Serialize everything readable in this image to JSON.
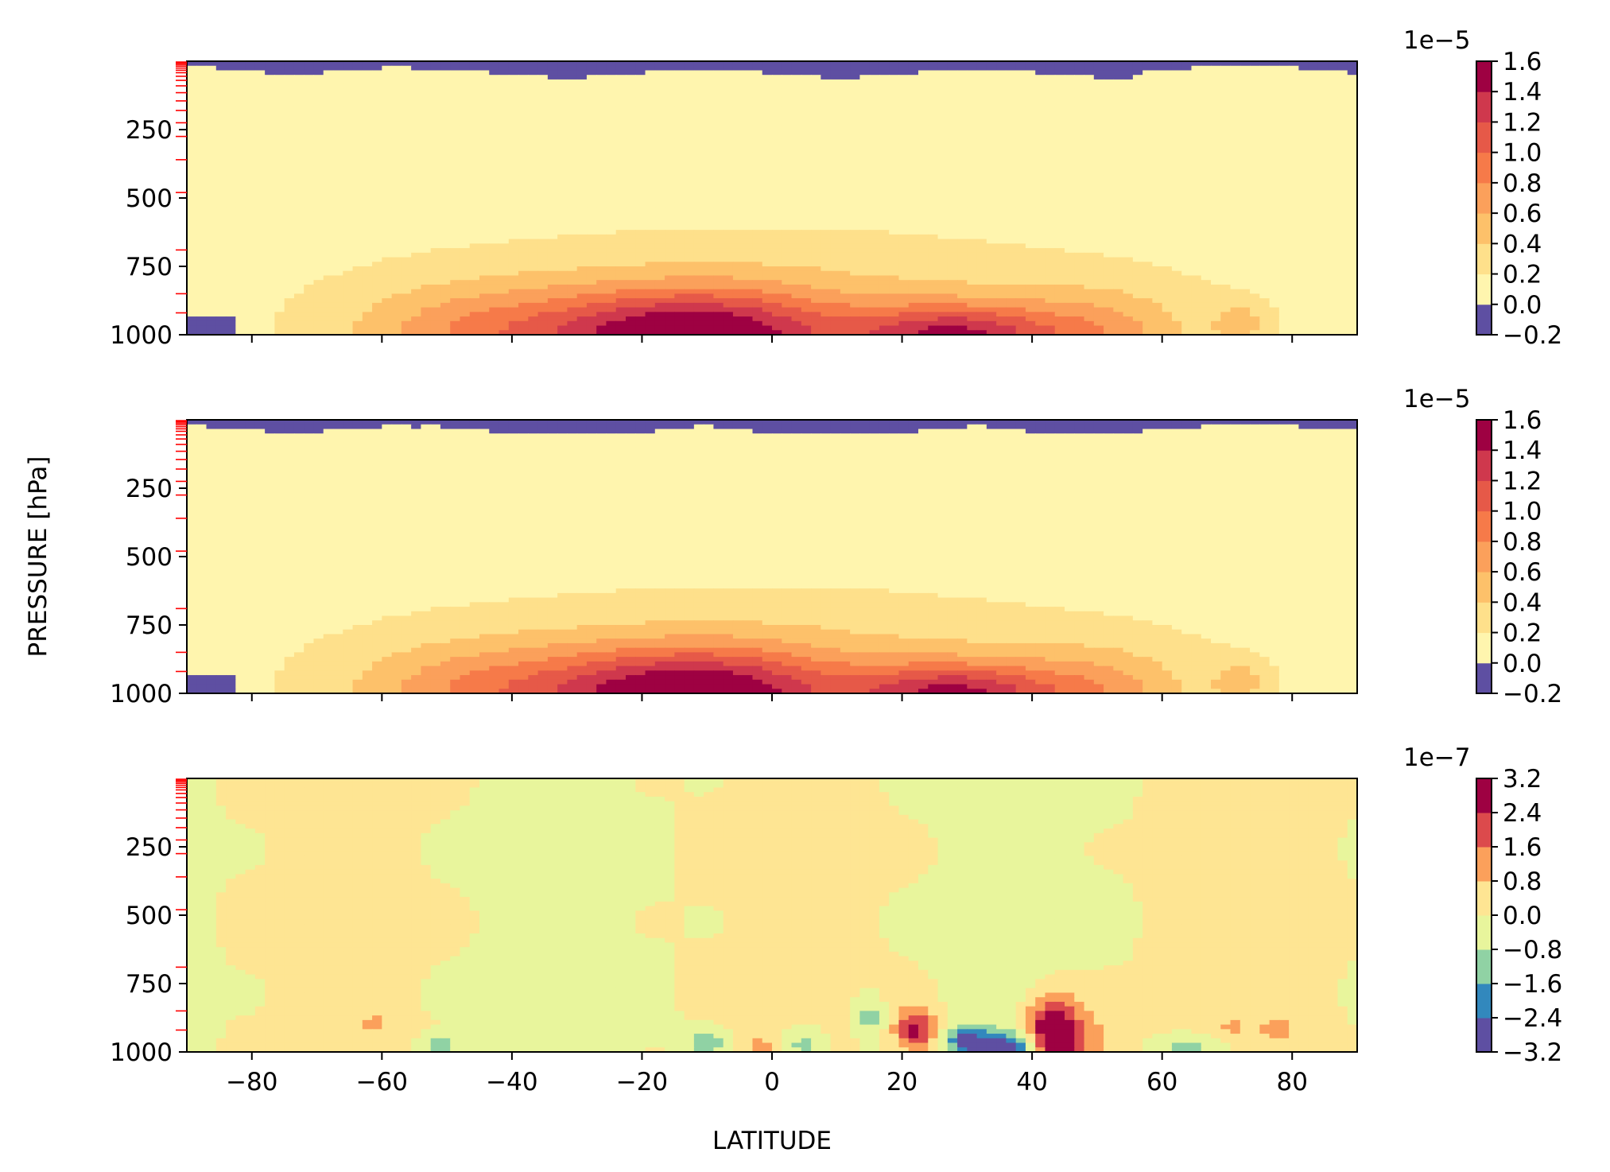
{
  "chart_data": [
    {
      "type": "heatmap",
      "title": "",
      "xlabel": "",
      "ylabel": "PRESSURE [hPa]",
      "xlim": [
        -90,
        90
      ],
      "ylim": [
        1000,
        0
      ],
      "yticks": [
        "250",
        "500",
        "750",
        "1000"
      ],
      "yticks_values": [
        250,
        500,
        750,
        1000
      ],
      "xticks_values": [
        -80,
        -60,
        -40,
        -20,
        0,
        20,
        40,
        60,
        80
      ],
      "xtick_labels_shown": false,
      "colorbar": {
        "scale_label": "1e−5",
        "levels": [
          -0.2,
          0.0,
          0.2,
          0.4,
          0.6,
          0.8,
          1.0,
          1.2,
          1.4,
          1.6
        ],
        "tick_labels": [
          "−0.2",
          "0.0",
          "0.2",
          "0.4",
          "0.6",
          "0.8",
          "1.0",
          "1.2",
          "1.4",
          "1.6"
        ],
        "colors": [
          "#5e4fa2",
          "#fff5ae",
          "#fee08b",
          "#fdc16a",
          "#fba05b",
          "#f67a49",
          "#e65948",
          "#cf384d",
          "#9e0142"
        ]
      },
      "model_levels_hPa": [
        3,
        7,
        12,
        18,
        25,
        33,
        42,
        55,
        70,
        90,
        115,
        145,
        180,
        225,
        275,
        360,
        480,
        690,
        850,
        920
      ]
    },
    {
      "type": "heatmap",
      "title": "",
      "xlabel": "",
      "ylabel": "PRESSURE [hPa]",
      "xlim": [
        -90,
        90
      ],
      "ylim": [
        1000,
        0
      ],
      "yticks": [
        "250",
        "500",
        "750",
        "1000"
      ],
      "yticks_values": [
        250,
        500,
        750,
        1000
      ],
      "xticks_values": [
        -80,
        -60,
        -40,
        -20,
        0,
        20,
        40,
        60,
        80
      ],
      "xtick_labels_shown": false,
      "colorbar": {
        "scale_label": "1e−5",
        "levels": [
          -0.2,
          0.0,
          0.2,
          0.4,
          0.6,
          0.8,
          1.0,
          1.2,
          1.4,
          1.6
        ],
        "tick_labels": [
          "−0.2",
          "0.0",
          "0.2",
          "0.4",
          "0.6",
          "0.8",
          "1.0",
          "1.2",
          "1.4",
          "1.6"
        ],
        "colors": [
          "#5e4fa2",
          "#fff5ae",
          "#fee08b",
          "#fdc16a",
          "#fba05b",
          "#f67a49",
          "#e65948",
          "#cf384d",
          "#9e0142"
        ]
      },
      "model_levels_hPa": [
        3,
        7,
        12,
        18,
        25,
        33,
        42,
        55,
        70,
        90,
        115,
        145,
        180,
        225,
        275,
        360,
        480,
        690,
        850,
        920
      ]
    },
    {
      "type": "heatmap",
      "title": "",
      "xlabel": "LATITUDE",
      "ylabel": "PRESSURE [hPa]",
      "xlim": [
        -90,
        90
      ],
      "ylim": [
        1000,
        0
      ],
      "yticks": [
        "250",
        "500",
        "750",
        "1000"
      ],
      "yticks_values": [
        250,
        500,
        750,
        1000
      ],
      "xticks": [
        "−80",
        "−60",
        "−40",
        "−20",
        "0",
        "20",
        "40",
        "60",
        "80"
      ],
      "xticks_values": [
        -80,
        -60,
        -40,
        -20,
        0,
        20,
        40,
        60,
        80
      ],
      "xtick_labels_shown": true,
      "colorbar": {
        "scale_label": "1e−7",
        "levels": [
          -3.2,
          -2.4,
          -1.6,
          -0.8,
          0.0,
          0.8,
          1.6,
          2.4,
          3.2
        ],
        "tick_labels": [
          "−3.2",
          "−2.4",
          "−1.6",
          "−0.8",
          "0.0",
          "0.8",
          "1.6",
          "2.4",
          "3.2"
        ],
        "colors": [
          "#5e4fa2",
          "#3288bd",
          "#90d2a4",
          "#e8f59c",
          "#fee593",
          "#fba05b",
          "#dc4a4c",
          "#9e0142"
        ]
      },
      "model_levels_hPa": [
        3,
        7,
        12,
        18,
        25,
        33,
        42,
        55,
        70,
        90,
        115,
        145,
        180,
        225,
        275,
        360,
        480,
        690,
        850,
        920
      ]
    }
  ]
}
